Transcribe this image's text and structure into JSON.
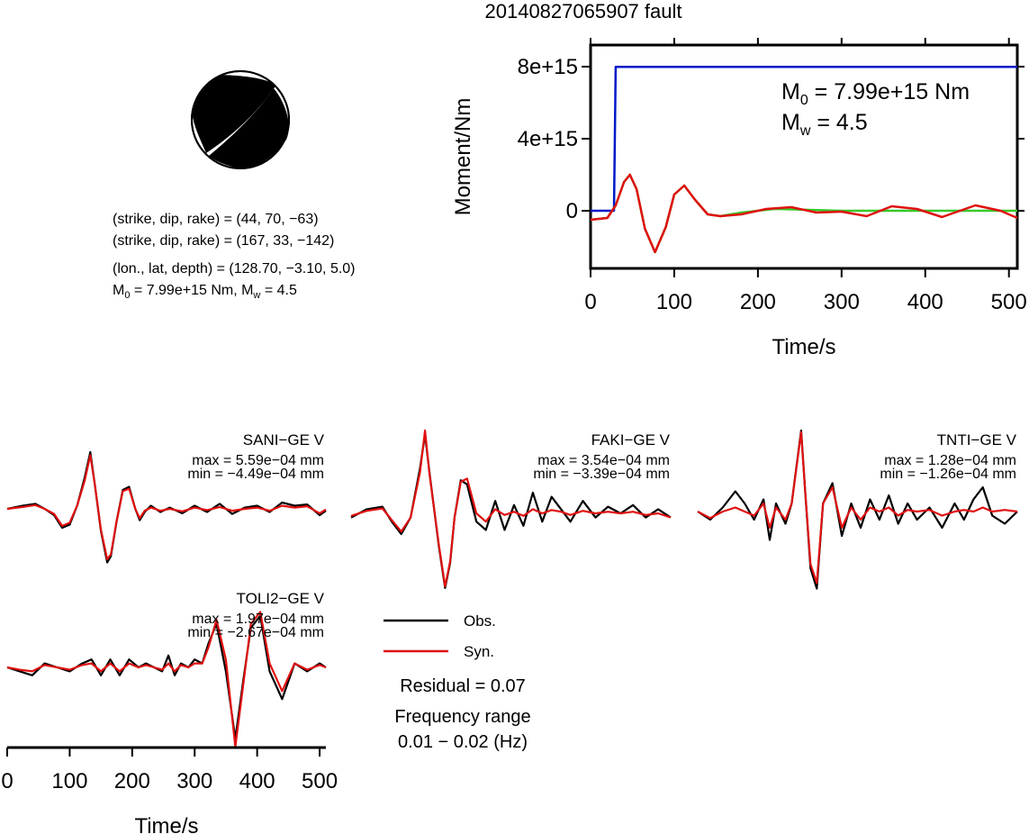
{
  "title": "20140827065907 fault",
  "source_params": {
    "line1": "(strike, dip, rake) = (44, 70, −63)",
    "line2": "(strike, dip, rake) = (167, 33, −142)",
    "line3": "(lon., lat, depth) = (128.70, −3.10, 5.0)",
    "line4_m0": "M",
    "line4_m0_sub": "0",
    "line4_m0_val": " = 7.99e+15 Nm, M",
    "line4_mw_sub": "w",
    "line4_mw_val": " = 4.5"
  },
  "legend": {
    "obs": "Obs.",
    "syn": "Syn.",
    "residual": "Residual = 0.07",
    "freq_label": "Frequency range",
    "freq_value": "0.01 − 0.02 (Hz)"
  },
  "colors": {
    "cumulative": "#0018c8",
    "moment_rate": "#e01010",
    "moment_rate_alt": "#38c82a",
    "obs": "#000000",
    "syn": "#e01010"
  },
  "chart_data": [
    {
      "type": "line",
      "title": "20140827065907 fault",
      "xlabel": "Time/s",
      "ylabel": "Moment/Nm",
      "xlim": [
        0,
        510
      ],
      "ylim": [
        -3200000000000000.0,
        9200000000000000.0
      ],
      "xticks": [
        "0",
        "100",
        "200",
        "300",
        "400",
        "500"
      ],
      "yticks": [
        "0",
        "4e+15",
        "8e+15"
      ],
      "annotation": {
        "m0_sym": "M",
        "m0_sub": "0",
        "m0_val": " = 7.99e+15 Nm",
        "mw_sym": "M",
        "mw_sub": "w",
        "mw_val": " = 4.5"
      },
      "series": [
        {
          "color": "#0018c8",
          "x": [
            0,
            28,
            30,
            510
          ],
          "y": [
            0,
            0,
            7990000000000000.0,
            7990000000000000.0
          ]
        },
        {
          "color": "#38c82a",
          "x": [
            0,
            20,
            30,
            40,
            47,
            55,
            65,
            77,
            90,
            100,
            112,
            125,
            140,
            155,
            180,
            220,
            300,
            400,
            510
          ],
          "y": [
            -500000000000000.0,
            -400000000000000.0,
            300000000000000.0,
            1600000000000000.0,
            2000000000000000.0,
            1200000000000000.0,
            -1000000000000000.0,
            -2300000000000000.0,
            -900000000000000.0,
            900000000000000.0,
            1400000000000000.0,
            600000000000000.0,
            -200000000000000.0,
            -300000000000000.0,
            -100000000000000.0,
            100000000000000.0,
            0.0,
            0.0,
            0.0
          ]
        },
        {
          "color": "#e01010",
          "x": [
            0,
            20,
            30,
            40,
            47,
            55,
            65,
            77,
            90,
            100,
            112,
            125,
            140,
            155,
            180,
            210,
            240,
            270,
            300,
            330,
            360,
            390,
            420,
            460,
            490,
            510
          ],
          "y": [
            -500000000000000.0,
            -400000000000000.0,
            300000000000000.0,
            1600000000000000.0,
            2000000000000000.0,
            1200000000000000.0,
            -1000000000000000.0,
            -2300000000000000.0,
            -900000000000000.0,
            900000000000000.0,
            1400000000000000.0,
            600000000000000.0,
            -200000000000000.0,
            -300000000000000.0,
            -200000000000000.0,
            100000000000000.0,
            200000000000000.0,
            -100000000000000.0,
            -50000000000000.0,
            -300000000000000.0,
            250000000000000.0,
            100000000000000.0,
            -350000000000000.0,
            300000000000000.0,
            0.0,
            -400000000000000.0
          ]
        }
      ]
    },
    {
      "type": "line",
      "station": "SANI−GE V",
      "max": "max = 5.59e−04 mm",
      "min": "min = −4.49e−04 mm",
      "xlim": [
        0,
        510
      ],
      "ylim": [
        -1,
        1
      ],
      "series": [
        {
          "name": "Obs.",
          "color": "#000000",
          "x": [
            0,
            25,
            45,
            60,
            75,
            88,
            100,
            112,
            124,
            133,
            140,
            150,
            160,
            166,
            175,
            185,
            195,
            205,
            212,
            220,
            230,
            245,
            260,
            280,
            300,
            320,
            340,
            360,
            380,
            400,
            420,
            440,
            460,
            480,
            500,
            510
          ],
          "y": [
            0,
            0.05,
            0.08,
            0.0,
            -0.1,
            -0.3,
            -0.25,
            0.05,
            0.5,
            0.9,
            0.4,
            -0.35,
            -0.85,
            -0.75,
            -0.2,
            0.3,
            0.35,
            0.0,
            -0.18,
            -0.05,
            0.05,
            -0.05,
            0.02,
            -0.07,
            0.05,
            -0.05,
            0.08,
            -0.08,
            0.02,
            0.05,
            -0.05,
            0.1,
            0.05,
            0.07,
            -0.1,
            -0.03
          ]
        },
        {
          "name": "Syn.",
          "color": "#e01010",
          "x": [
            0,
            25,
            45,
            60,
            75,
            88,
            100,
            112,
            124,
            133,
            140,
            150,
            160,
            166,
            175,
            185,
            195,
            205,
            212,
            220,
            230,
            245,
            260,
            280,
            300,
            320,
            340,
            360,
            380,
            400,
            420,
            440,
            460,
            480,
            500,
            510
          ],
          "y": [
            0,
            0.03,
            0.06,
            0.0,
            -0.08,
            -0.27,
            -0.22,
            0.05,
            0.45,
            0.85,
            0.4,
            -0.33,
            -0.8,
            -0.72,
            -0.2,
            0.28,
            0.32,
            0.0,
            -0.15,
            -0.03,
            0.02,
            -0.03,
            0.0,
            -0.04,
            0.02,
            -0.02,
            0.03,
            -0.03,
            0.0,
            0.02,
            -0.03,
            0.05,
            0.02,
            0.04,
            -0.07,
            -0.01
          ]
        }
      ]
    },
    {
      "type": "line",
      "station": "FAKI−GE V",
      "max": "max = 3.54e−04 mm",
      "min": "min = −3.39e−04 mm",
      "xlim": [
        0,
        510
      ],
      "ylim": [
        -1,
        1
      ],
      "series": [
        {
          "name": "Obs.",
          "color": "#000000",
          "x": [
            0,
            25,
            50,
            65,
            80,
            95,
            110,
            118,
            125,
            140,
            150,
            158,
            165,
            175,
            185,
            200,
            215,
            230,
            245,
            260,
            275,
            290,
            305,
            320,
            335,
            350,
            370,
            390,
            410,
            430,
            450,
            470,
            490,
            510
          ],
          "y": [
            -0.05,
            0.05,
            0.08,
            -0.1,
            -0.25,
            -0.05,
            0.55,
            0.95,
            0.5,
            -0.4,
            -0.9,
            -0.6,
            -0.05,
            0.4,
            0.35,
            -0.1,
            -0.2,
            0.15,
            -0.2,
            0.1,
            -0.15,
            0.25,
            -0.1,
            0.2,
            0.05,
            -0.1,
            0.15,
            -0.05,
            0.08,
            0.0,
            0.1,
            -0.05,
            0.05,
            -0.05
          ]
        },
        {
          "name": "Syn.",
          "color": "#e01010",
          "x": [
            0,
            25,
            50,
            65,
            80,
            95,
            110,
            118,
            125,
            140,
            150,
            158,
            165,
            175,
            185,
            200,
            215,
            230,
            245,
            260,
            275,
            290,
            305,
            320,
            335,
            350,
            370,
            390,
            410,
            430,
            450,
            470,
            490,
            510
          ],
          "y": [
            -0.03,
            0.03,
            0.06,
            -0.08,
            -0.22,
            -0.05,
            0.5,
            1.0,
            0.48,
            -0.38,
            -0.88,
            -0.58,
            -0.05,
            0.38,
            0.42,
            0.0,
            -0.1,
            0.05,
            -0.02,
            0.02,
            -0.03,
            0.05,
            0.0,
            0.04,
            0.02,
            -0.02,
            0.03,
            0.0,
            0.02,
            0.0,
            0.02,
            -0.02,
            0.0,
            -0.05
          ]
        }
      ]
    },
    {
      "type": "line",
      "station": "TNTI−GE V",
      "max": "max = 1.28e−04 mm",
      "min": "min = −1.26e−04 mm",
      "xlim": [
        0,
        510
      ],
      "ylim": [
        -1,
        1
      ],
      "series": [
        {
          "name": "Obs.",
          "color": "#000000",
          "x": [
            0,
            20,
            40,
            60,
            75,
            90,
            105,
            115,
            125,
            140,
            150,
            165,
            172,
            180,
            190,
            200,
            215,
            230,
            245,
            260,
            275,
            290,
            305,
            320,
            335,
            350,
            370,
            390,
            410,
            425,
            440,
            455,
            470,
            490,
            510
          ],
          "y": [
            0.0,
            -0.1,
            0.05,
            0.25,
            0.1,
            -0.1,
            0.15,
            -0.35,
            0.1,
            -0.15,
            0.1,
            1.0,
            0.2,
            -0.7,
            -0.95,
            0.1,
            0.35,
            -0.3,
            0.1,
            -0.2,
            0.15,
            -0.1,
            0.2,
            -0.15,
            0.1,
            -0.1,
            0.05,
            -0.2,
            0.1,
            -0.1,
            0.15,
            0.3,
            -0.05,
            -0.15,
            0.0
          ]
        },
        {
          "name": "Syn.",
          "color": "#e01010",
          "x": [
            0,
            20,
            40,
            60,
            75,
            90,
            105,
            115,
            125,
            140,
            150,
            165,
            172,
            180,
            190,
            200,
            215,
            230,
            245,
            260,
            275,
            290,
            305,
            320,
            335,
            350,
            370,
            390,
            410,
            425,
            440,
            455,
            470,
            490,
            510
          ],
          "y": [
            0.0,
            -0.08,
            0.0,
            0.05,
            0.0,
            -0.05,
            0.1,
            -0.2,
            0.05,
            -0.1,
            0.1,
            0.98,
            0.2,
            -0.65,
            -0.88,
            0.1,
            0.3,
            -0.2,
            0.05,
            -0.1,
            0.05,
            0.0,
            0.05,
            -0.05,
            0.02,
            0.0,
            0.02,
            -0.05,
            0.0,
            0.02,
            0.0,
            0.05,
            0.0,
            0.02,
            0.0
          ]
        }
      ]
    },
    {
      "type": "line",
      "station": "TOLI2−GE V",
      "max": "max = 1.97e−04 mm",
      "min": "min = −2.67e−04 mm",
      "xlabel": "Time/s",
      "xlim": [
        0,
        510
      ],
      "ylim": [
        -1,
        1
      ],
      "xticks": [
        "0",
        "100",
        "200",
        "300",
        "400",
        "500"
      ],
      "series": [
        {
          "name": "Obs.",
          "color": "#000000",
          "x": [
            0,
            20,
            40,
            60,
            80,
            100,
            120,
            135,
            150,
            165,
            180,
            195,
            210,
            222,
            235,
            248,
            258,
            268,
            278,
            290,
            300,
            312,
            322,
            335,
            350,
            365,
            378,
            390,
            405,
            420,
            440,
            460,
            480,
            500,
            510
          ],
          "y": [
            0.0,
            -0.05,
            -0.1,
            0.05,
            0.0,
            -0.05,
            0.05,
            0.1,
            -0.1,
            0.1,
            -0.1,
            0.1,
            0.0,
            0.05,
            0.0,
            -0.05,
            0.15,
            -0.1,
            0.05,
            0.0,
            0.1,
            0.05,
            0.3,
            0.55,
            -0.05,
            -0.9,
            -0.15,
            0.5,
            0.65,
            -0.05,
            -0.4,
            0.05,
            -0.05,
            0.05,
            0.0
          ]
        },
        {
          "name": "Syn.",
          "color": "#e01010",
          "x": [
            0,
            20,
            40,
            60,
            80,
            100,
            120,
            135,
            150,
            165,
            180,
            195,
            210,
            222,
            235,
            248,
            258,
            268,
            278,
            290,
            300,
            312,
            322,
            335,
            350,
            365,
            378,
            390,
            405,
            420,
            440,
            460,
            480,
            500,
            510
          ],
          "y": [
            0.0,
            -0.03,
            -0.05,
            0.03,
            0.0,
            -0.03,
            0.03,
            0.05,
            -0.05,
            0.05,
            -0.05,
            0.05,
            0.0,
            0.03,
            0.0,
            -0.03,
            0.05,
            -0.05,
            0.03,
            0.0,
            0.05,
            0.05,
            0.25,
            0.6,
            0.1,
            -1.0,
            -0.2,
            0.55,
            0.7,
            0.05,
            -0.3,
            0.05,
            -0.03,
            0.03,
            0.0
          ]
        }
      ]
    }
  ]
}
